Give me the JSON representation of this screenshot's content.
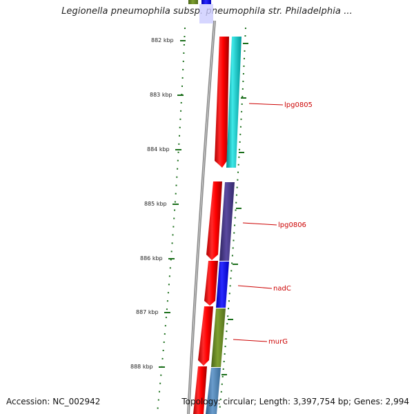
{
  "header": {
    "title": "Legionella pneumophila subsp. pneumophila str. Philadelphia ..."
  },
  "footer": {
    "accession": "Accession: NC_002942",
    "summary": "Topology: circular; Length: 3,397,754 bp; Genes: 2,994"
  },
  "scale": {
    "labels": [
      "882 kbp",
      "883 kbp",
      "884 kbp",
      "885 kbp",
      "886 kbp",
      "887 kbp",
      "888 kbp"
    ]
  },
  "genes": {
    "labels": [
      "lpg0805",
      "lpg0806",
      "nadC",
      "murG"
    ]
  },
  "colors": {
    "backbone": "#8a8a8a",
    "tick_green": "#1a6e1a",
    "reverse_strand": "#ff0000",
    "lpg0805": "#00c8c8",
    "lpg0806": "#4b3c8c",
    "nadC": "#0000ff",
    "murG": "#6b8e23",
    "downstream": "#4682b4",
    "label_red": "#cc0000"
  }
}
